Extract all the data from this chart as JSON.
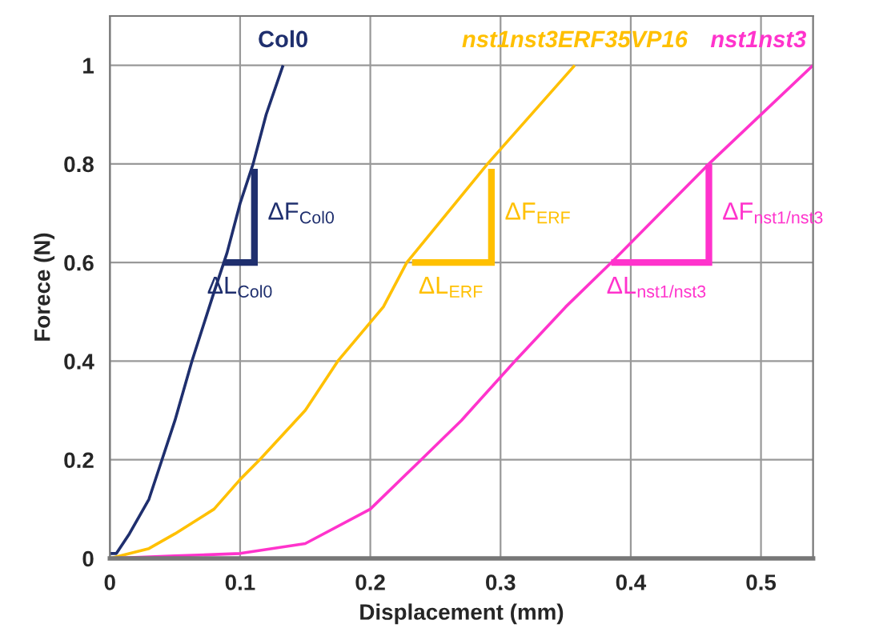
{
  "chart_data": {
    "type": "line",
    "xlabel": "Displacement (mm)",
    "ylabel": "Forece (N)",
    "xlim": [
      0,
      0.54
    ],
    "ylim": [
      0,
      1.1
    ],
    "xticks": [
      0,
      0.1,
      0.2,
      0.3,
      0.4,
      0.5
    ],
    "yticks": [
      0,
      0.2,
      0.4,
      0.6,
      0.8,
      1
    ],
    "grid": true,
    "legend": false,
    "marker": "none",
    "line_style": "solid",
    "series": [
      {
        "name": "Col0",
        "color": "#1f2f6e",
        "x": [
          0,
          0.005,
          0.01,
          0.015,
          0.03,
          0.04,
          0.05,
          0.063,
          0.08,
          0.09,
          0.1,
          0.11,
          0.12,
          0.133
        ],
        "values": [
          0.01,
          0.01,
          0.03,
          0.05,
          0.12,
          0.2,
          0.28,
          0.4,
          0.54,
          0.62,
          0.72,
          0.8,
          0.9,
          1.0
        ]
      },
      {
        "name": "nst1nst3ERF35VP16",
        "color": "#ffc000",
        "x": [
          0,
          0.03,
          0.05,
          0.08,
          0.1,
          0.115,
          0.15,
          0.175,
          0.21,
          0.228,
          0.29,
          0.357
        ],
        "values": [
          0,
          0.02,
          0.05,
          0.1,
          0.16,
          0.2,
          0.3,
          0.4,
          0.51,
          0.6,
          0.8,
          1.0
        ]
      },
      {
        "name": "nst1nst3",
        "color": "#ff33cc",
        "x": [
          0,
          0.05,
          0.1,
          0.15,
          0.2,
          0.239,
          0.27,
          0.311,
          0.35,
          0.385,
          0.46,
          0.54
        ],
        "values": [
          0,
          0.005,
          0.01,
          0.03,
          0.1,
          0.2,
          0.28,
          0.4,
          0.51,
          0.6,
          0.8,
          1.0
        ]
      },
      {
        "color": "#1f2f6e",
        "x": [
          0.0875,
          0.111,
          0.111
        ],
        "values": [
          0.6,
          0.6,
          0.79
        ]
      },
      {
        "color": "#ffc000",
        "x": [
          0.232,
          0.293,
          0.293
        ],
        "values": [
          0.6,
          0.6,
          0.79
        ]
      },
      {
        "color": "#ff33cc",
        "x": [
          0.385,
          0.46,
          0.46
        ],
        "values": [
          0.6,
          0.6,
          0.8
        ]
      }
    ],
    "annotations": [
      {
        "text": "ΔF$_{Col0}$",
        "x": 0.111,
        "y": 0.7
      },
      {
        "text": "ΔL$_{Col0}$",
        "x": 0.1,
        "y": 0.6
      },
      {
        "text": "ΔF$_{ERF}$",
        "x": 0.293,
        "y": 0.7
      },
      {
        "text": "ΔL$_{ERF}$",
        "x": 0.262,
        "y": 0.6
      },
      {
        "text": "ΔF$_{nst1/nst3}$",
        "x": 0.46,
        "y": 0.7
      },
      {
        "text": "ΔL$_{nst1/nst3}$",
        "x": 0.42,
        "y": 0.6
      }
    ]
  }
}
